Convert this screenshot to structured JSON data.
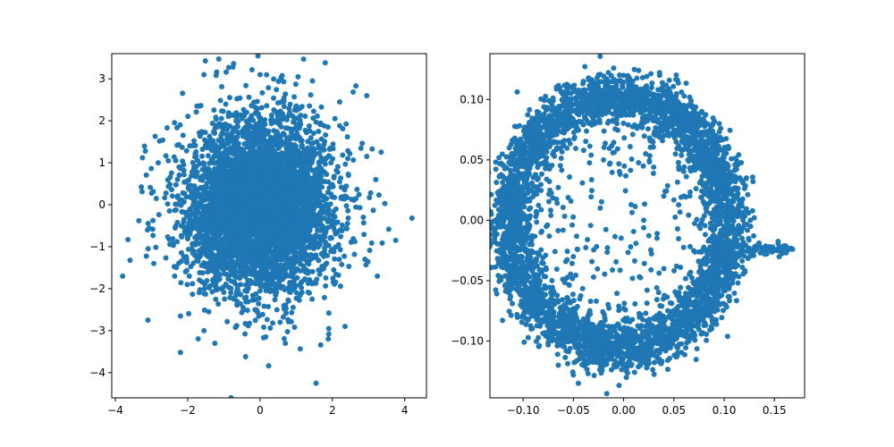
{
  "chart_data": [
    {
      "type": "scatter",
      "title": "",
      "xlabel": "",
      "ylabel": "",
      "xlim": [
        -4.1,
        4.6
      ],
      "ylim": [
        -4.6,
        3.6
      ],
      "xticks": [
        -4,
        -2,
        0,
        2,
        4
      ],
      "xtick_labels": [
        "−4",
        "−2",
        "0",
        "2",
        "4"
      ],
      "yticks": [
        -4,
        -3,
        -2,
        -1,
        0,
        1,
        2,
        3
      ],
      "ytick_labels": [
        "−4",
        "−3",
        "−2",
        "−1",
        "0",
        "1",
        "2",
        "3"
      ],
      "grid": false,
      "legend": "none",
      "marker_color": "#1f77b4",
      "distribution": {
        "kind": "gaussian-cloud",
        "n": 5000,
        "center": [
          0,
          0
        ],
        "std": [
          1,
          1
        ],
        "seed": 7
      },
      "points": [
        [
          4.2,
          -0.32
        ],
        [
          3.75,
          -0.85
        ],
        [
          3.45,
          0.03
        ],
        [
          3.1,
          1.33
        ],
        [
          2.95,
          1.15
        ],
        [
          2.65,
          2.83
        ],
        [
          2.2,
          2.45
        ],
        [
          1.55,
          -4.25
        ],
        [
          1.9,
          -2.95
        ],
        [
          2.35,
          -2.9
        ],
        [
          1.9,
          -3.08
        ],
        [
          0.7,
          -3.3
        ],
        [
          -0.4,
          -3.62
        ],
        [
          -1.25,
          -3.3
        ],
        [
          -1.55,
          -3.0
        ],
        [
          -2.2,
          -3.52
        ],
        [
          -3.1,
          -2.75
        ],
        [
          -3.8,
          -1.7
        ],
        [
          -3.35,
          -0.38
        ],
        [
          -3.25,
          1.12
        ],
        [
          -2.9,
          1.63
        ],
        [
          -2.2,
          -2.65
        ],
        [
          -1.55,
          3.1
        ],
        [
          -0.75,
          3.28
        ],
        [
          0.0,
          3.1
        ],
        [
          1.05,
          3.05
        ],
        [
          1.45,
          2.95
        ],
        [
          2.95,
          2.6
        ],
        [
          3.2,
          0.6
        ],
        [
          2.9,
          -1.3
        ]
      ]
    },
    {
      "type": "scatter",
      "title": "",
      "xlabel": "",
      "ylabel": "",
      "xlim": [
        -0.133,
        0.18
      ],
      "ylim": [
        -0.147,
        0.138
      ],
      "xticks": [
        -0.1,
        -0.05,
        0.0,
        0.05,
        0.1,
        0.15
      ],
      "xtick_labels": [
        "−0.10",
        "−0.05",
        "0.00",
        "0.05",
        "0.10",
        "0.15"
      ],
      "yticks": [
        -0.1,
        -0.05,
        0.0,
        0.05,
        0.1
      ],
      "ytick_labels": [
        "−0.10",
        "−0.05",
        "0.00",
        "0.05",
        "0.10"
      ],
      "grid": false,
      "legend": "none",
      "marker_color": "#1f77b4",
      "distribution": {
        "kind": "ring-with-tail",
        "n_ring": 4300,
        "n_interior": 220,
        "n_tail": 140,
        "center": [
          -0.005,
          -0.002
        ],
        "radius_x": 0.108,
        "radius_y": 0.104,
        "ring_width": 0.011,
        "tail_start": [
          0.09,
          -0.025
        ],
        "tail_end": [
          0.168,
          -0.023
        ],
        "seed": 11
      },
      "points": [
        [
          0.168,
          -0.024
        ],
        [
          0.155,
          -0.023
        ],
        [
          0.145,
          -0.022
        ],
        [
          0.135,
          -0.022
        ],
        [
          -0.045,
          -0.135
        ],
        [
          -0.05,
          -0.128
        ],
        [
          -0.065,
          -0.12
        ],
        [
          -0.12,
          0.0
        ],
        [
          0.015,
          0.124
        ],
        [
          0.0,
          0.12
        ],
        [
          -0.1,
          0.06
        ],
        [
          0.02,
          0.0
        ],
        [
          -0.02,
          0.05
        ],
        [
          0.04,
          -0.04
        ],
        [
          -0.05,
          -0.03
        ],
        [
          0.06,
          0.02
        ]
      ]
    }
  ]
}
